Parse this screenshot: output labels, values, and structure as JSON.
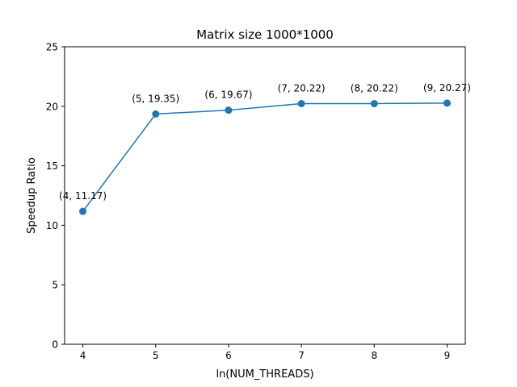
{
  "chart_data": {
    "type": "line",
    "title": "Matrix size 1000*1000",
    "xlabel": "ln(NUM_THREADS)",
    "ylabel": "Speedup Ratio",
    "xlim": [
      3.75,
      9.25
    ],
    "ylim": [
      0,
      25
    ],
    "xticks": [
      4,
      5,
      6,
      7,
      8,
      9
    ],
    "yticks": [
      0,
      5,
      10,
      15,
      20,
      25
    ],
    "grid": false,
    "series": [
      {
        "x": [
          4,
          5,
          6,
          7,
          8,
          9
        ],
        "y": [
          11.17,
          19.35,
          19.67,
          20.22,
          20.22,
          20.27
        ],
        "color": "#1f77b4",
        "marker": "circle"
      }
    ],
    "annotations": [
      "(4, 11.17)",
      "(5, 19.35)",
      "(6, 19.67)",
      "(7, 20.22)",
      "(8, 20.22)",
      "(9, 20.27)"
    ]
  }
}
